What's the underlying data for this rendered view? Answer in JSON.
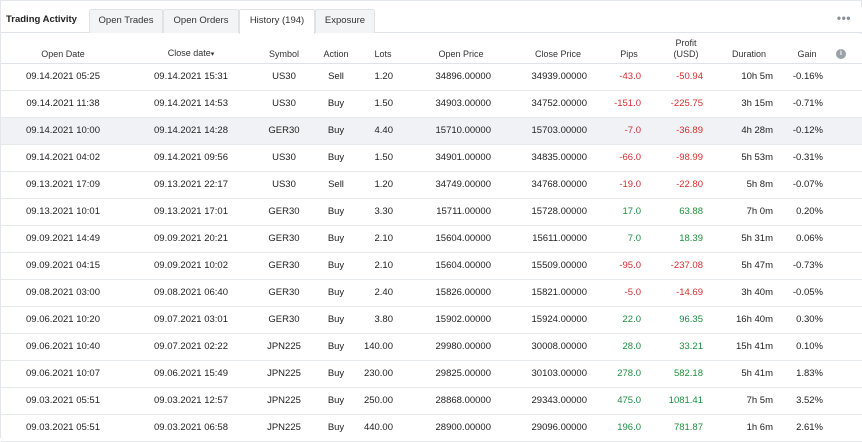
{
  "tabs": [
    {
      "label": "Trading Activity"
    },
    {
      "label": "Open Trades"
    },
    {
      "label": "Open Orders"
    },
    {
      "label": "History (194)"
    },
    {
      "label": "Exposure"
    }
  ],
  "more_icon": "more-dots-icon",
  "columns": {
    "open_date": "Open Date",
    "close_date": "Close date",
    "sort_indicator": "▾",
    "symbol": "Symbol",
    "action": "Action",
    "lots": "Lots",
    "open_price": "Open Price",
    "close_price": "Close Price",
    "pips": "Pips",
    "profit_line1": "Profit",
    "profit_line2": "(USD)",
    "duration": "Duration",
    "gain": "Gain"
  },
  "colors": {
    "negative": "#d32f2f",
    "positive": "#1e8e3e"
  },
  "rows": [
    {
      "open_date": "09.14.2021 05:25",
      "close_date": "09.14.2021 15:31",
      "symbol": "US30",
      "action": "Sell",
      "lots": "1.20",
      "open_price": "34896.00000",
      "close_price": "34939.00000",
      "pips": "-43.0",
      "profit": "-50.94",
      "duration": "10h 5m",
      "gain": "-0.16%"
    },
    {
      "open_date": "09.14.2021 11:38",
      "close_date": "09.14.2021 14:53",
      "symbol": "US30",
      "action": "Buy",
      "lots": "1.50",
      "open_price": "34903.00000",
      "close_price": "34752.00000",
      "pips": "-151.0",
      "profit": "-225.75",
      "duration": "3h 15m",
      "gain": "-0.71%"
    },
    {
      "open_date": "09.14.2021 10:00",
      "close_date": "09.14.2021 14:28",
      "symbol": "GER30",
      "action": "Buy",
      "lots": "4.40",
      "open_price": "15710.00000",
      "close_price": "15703.00000",
      "pips": "-7.0",
      "profit": "-36.89",
      "duration": "4h 28m",
      "gain": "-0.12%"
    },
    {
      "open_date": "09.14.2021 04:02",
      "close_date": "09.14.2021 09:56",
      "symbol": "US30",
      "action": "Buy",
      "lots": "1.50",
      "open_price": "34901.00000",
      "close_price": "34835.00000",
      "pips": "-66.0",
      "profit": "-98.99",
      "duration": "5h 53m",
      "gain": "-0.31%"
    },
    {
      "open_date": "09.13.2021 17:09",
      "close_date": "09.13.2021 22:17",
      "symbol": "US30",
      "action": "Sell",
      "lots": "1.20",
      "open_price": "34749.00000",
      "close_price": "34768.00000",
      "pips": "-19.0",
      "profit": "-22.80",
      "duration": "5h 8m",
      "gain": "-0.07%"
    },
    {
      "open_date": "09.13.2021 10:01",
      "close_date": "09.13.2021 17:01",
      "symbol": "GER30",
      "action": "Buy",
      "lots": "3.30",
      "open_price": "15711.00000",
      "close_price": "15728.00000",
      "pips": "17.0",
      "profit": "63.88",
      "duration": "7h 0m",
      "gain": "0.20%"
    },
    {
      "open_date": "09.09.2021 14:49",
      "close_date": "09.09.2021 20:21",
      "symbol": "GER30",
      "action": "Buy",
      "lots": "2.10",
      "open_price": "15604.00000",
      "close_price": "15611.00000",
      "pips": "7.0",
      "profit": "18.39",
      "duration": "5h 31m",
      "gain": "0.06%"
    },
    {
      "open_date": "09.09.2021 04:15",
      "close_date": "09.09.2021 10:02",
      "symbol": "GER30",
      "action": "Buy",
      "lots": "2.10",
      "open_price": "15604.00000",
      "close_price": "15509.00000",
      "pips": "-95.0",
      "profit": "-237.08",
      "duration": "5h 47m",
      "gain": "-0.73%"
    },
    {
      "open_date": "09.08.2021 03:00",
      "close_date": "09.08.2021 06:40",
      "symbol": "GER30",
      "action": "Buy",
      "lots": "2.40",
      "open_price": "15826.00000",
      "close_price": "15821.00000",
      "pips": "-5.0",
      "profit": "-14.69",
      "duration": "3h 40m",
      "gain": "-0.05%"
    },
    {
      "open_date": "09.06.2021 10:20",
      "close_date": "09.07.2021 03:01",
      "symbol": "GER30",
      "action": "Buy",
      "lots": "3.80",
      "open_price": "15902.00000",
      "close_price": "15924.00000",
      "pips": "22.0",
      "profit": "96.35",
      "duration": "16h 40m",
      "gain": "0.30%"
    },
    {
      "open_date": "09.06.2021 10:40",
      "close_date": "09.07.2021 02:22",
      "symbol": "JPN225",
      "action": "Buy",
      "lots": "140.00",
      "open_price": "29980.00000",
      "close_price": "30008.00000",
      "pips": "28.0",
      "profit": "33.21",
      "duration": "15h 41m",
      "gain": "0.10%"
    },
    {
      "open_date": "09.06.2021 10:07",
      "close_date": "09.06.2021 15:49",
      "symbol": "JPN225",
      "action": "Buy",
      "lots": "230.00",
      "open_price": "29825.00000",
      "close_price": "30103.00000",
      "pips": "278.0",
      "profit": "582.18",
      "duration": "5h 41m",
      "gain": "1.83%"
    },
    {
      "open_date": "09.03.2021 05:51",
      "close_date": "09.03.2021 12:57",
      "symbol": "JPN225",
      "action": "Buy",
      "lots": "250.00",
      "open_price": "28868.00000",
      "close_price": "29343.00000",
      "pips": "475.0",
      "profit": "1081.41",
      "duration": "7h 5m",
      "gain": "3.52%"
    },
    {
      "open_date": "09.03.2021 05:51",
      "close_date": "09.03.2021 06:58",
      "symbol": "JPN225",
      "action": "Buy",
      "lots": "440.00",
      "open_price": "28900.00000",
      "close_price": "29096.00000",
      "pips": "196.0",
      "profit": "781.87",
      "duration": "1h 6m",
      "gain": "2.61%"
    }
  ]
}
